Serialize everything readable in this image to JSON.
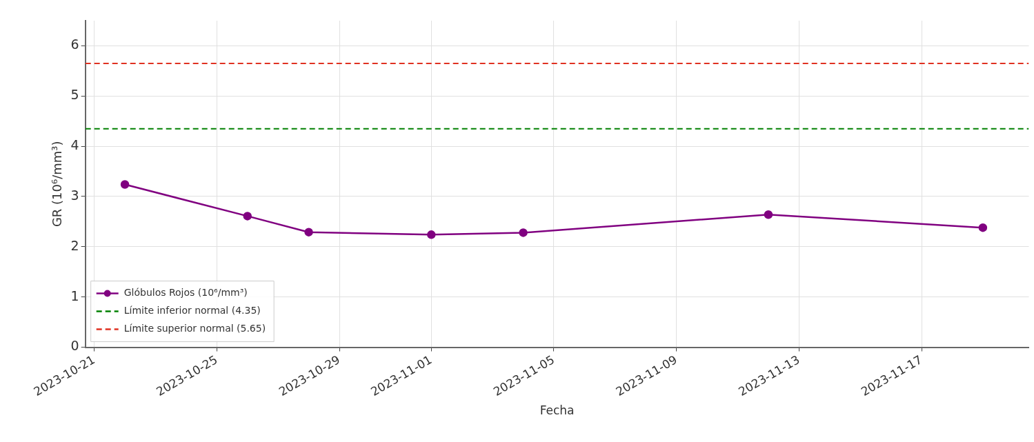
{
  "chart_data": {
    "type": "line",
    "xlabel": "Fecha",
    "ylabel": "GR (10⁶/mm³)",
    "x": [
      "2023-10-22",
      "2023-10-26",
      "2023-10-28",
      "2023-11-01",
      "2023-11-04",
      "2023-11-12",
      "2023-11-19"
    ],
    "series": [
      {
        "name": "Glóbulos Rojos (10⁶/mm³)",
        "color": "#800080",
        "values": [
          3.24,
          2.61,
          2.29,
          2.24,
          2.28,
          2.64,
          2.38
        ]
      }
    ],
    "xlim": [
      "2023-10-20T17:00",
      "2023-11-20T12:00"
    ],
    "xticks": [
      "2023-10-21",
      "2023-10-25",
      "2023-10-29",
      "2023-11-01",
      "2023-11-05",
      "2023-11-09",
      "2023-11-13",
      "2023-11-17"
    ],
    "ylim": [
      0,
      6.5
    ],
    "yticks": [
      0,
      1,
      2,
      3,
      4,
      5,
      6
    ],
    "ref_lines": [
      {
        "axis": "y",
        "value": 4.35,
        "label": "Límite inferior normal (4.35)",
        "color": "#008000",
        "line_style": "dashed"
      },
      {
        "axis": "y",
        "value": 5.65,
        "label": "Límite superior normal (5.65)",
        "color": "#e03020",
        "line_style": "dashed"
      }
    ],
    "grid": true,
    "legend": "bottom left",
    "marker": "circle",
    "line_style": "solid"
  }
}
